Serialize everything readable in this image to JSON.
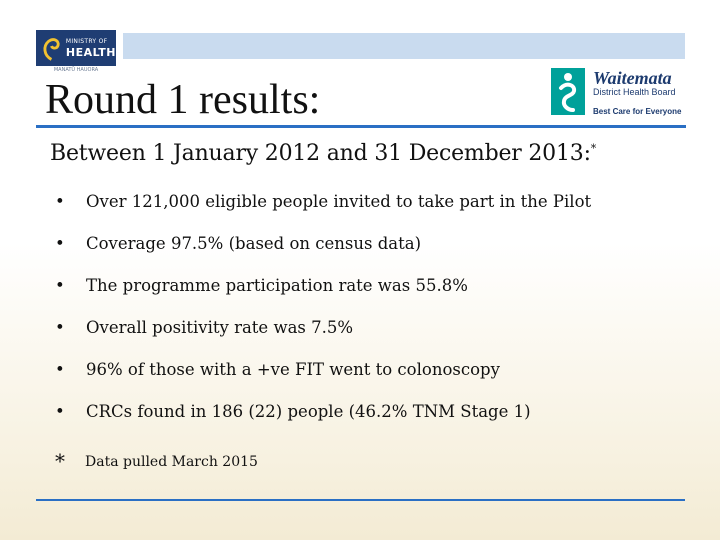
{
  "header": {
    "moh_logo": {
      "line1": "MINISTRY OF",
      "line2": "HEALTH",
      "sub": "MANATŪ HAUORA"
    },
    "title": "Round 1 results:",
    "wdhb_logo": {
      "name": "Waitemata",
      "subtitle": "District Health Board",
      "tagline": "Best Care for Everyone"
    }
  },
  "content": {
    "intro": "Between 1 January 2012 and 31 December 2013:",
    "intro_marker": "*",
    "bullet_symbol": "•",
    "bullets": [
      "Over 121,000 eligible people invited to take part in the Pilot",
      "Coverage 97.5% (based on census data)",
      "The programme participation rate was 55.8%",
      "Overall positivity rate was 7.5%",
      "96% of those with a +ve FIT  went to colonoscopy",
      "CRCs found in 186 (22) people (46.2% TNM Stage 1)"
    ],
    "footnote": {
      "symbol": "*",
      "text": "Data pulled March 2015"
    }
  },
  "colors": {
    "accent_rule": "#2a6fc4",
    "band": "#c9dbef",
    "moh_navy": "#1f3d73",
    "wdhb_teal": "#00a19a",
    "wdhb_navy": "#1d3b6f"
  }
}
